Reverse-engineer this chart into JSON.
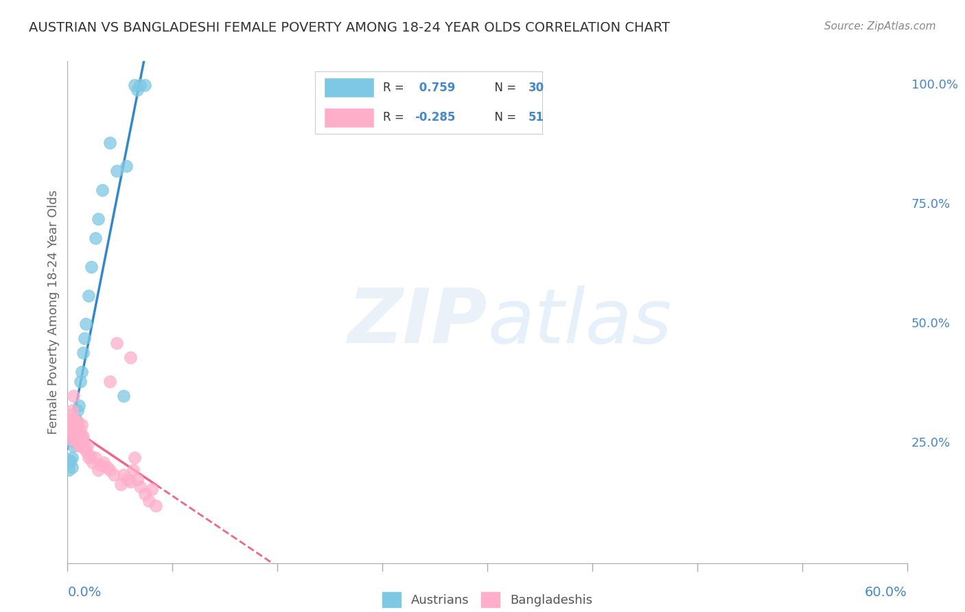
{
  "title": "AUSTRIAN VS BANGLADESHI FEMALE POVERTY AMONG 18-24 YEAR OLDS CORRELATION CHART",
  "source": "Source: ZipAtlas.com",
  "ylabel": "Female Poverty Among 18-24 Year Olds",
  "right_yticks": [
    "25.0%",
    "50.0%",
    "75.0%",
    "100.0%"
  ],
  "right_ytick_vals": [
    0.25,
    0.5,
    0.75,
    1.0
  ],
  "legend_austrians_r": "0.759",
  "legend_austrians_n": "30",
  "legend_bangladeshis_r": "-0.285",
  "legend_bangladeshis_n": "51",
  "blue_color": "#7ec8e3",
  "pink_color": "#ffaec9",
  "blue_line_color": "#3388cc",
  "pink_line_color": "#ee6688",
  "title_color": "#333333",
  "axis_label_color": "#666666",
  "right_axis_color": "#4488cc",
  "blue_label_color": "#4488cc",
  "background_color": "#ffffff",
  "grid_color": "#cccccc",
  "xlim": [
    0.0,
    0.6
  ],
  "ylim": [
    0.0,
    1.05
  ],
  "austrians_x": [
    0.001,
    0.002,
    0.002,
    0.003,
    0.003,
    0.004,
    0.004,
    0.005,
    0.006,
    0.007,
    0.007,
    0.008,
    0.009,
    0.01,
    0.011,
    0.012,
    0.013,
    0.015,
    0.017,
    0.02,
    0.022,
    0.025,
    0.03,
    0.035,
    0.04,
    0.042,
    0.048,
    0.05,
    0.052,
    0.055
  ],
  "austrians_y": [
    0.195,
    0.215,
    0.21,
    0.22,
    0.2,
    0.245,
    0.255,
    0.28,
    0.3,
    0.32,
    0.295,
    0.33,
    0.38,
    0.4,
    0.44,
    0.47,
    0.5,
    0.56,
    0.62,
    0.68,
    0.72,
    0.78,
    0.88,
    0.82,
    0.35,
    0.83,
    1.0,
    0.99,
    1.0,
    1.0
  ],
  "bangladeshis_x": [
    0.001,
    0.001,
    0.002,
    0.002,
    0.003,
    0.003,
    0.004,
    0.004,
    0.005,
    0.005,
    0.005,
    0.006,
    0.006,
    0.007,
    0.007,
    0.008,
    0.008,
    0.009,
    0.009,
    0.01,
    0.01,
    0.011,
    0.011,
    0.012,
    0.013,
    0.014,
    0.015,
    0.016,
    0.018,
    0.02,
    0.022,
    0.024,
    0.026,
    0.028,
    0.03,
    0.033,
    0.038,
    0.04,
    0.043,
    0.045,
    0.047,
    0.048,
    0.05,
    0.052,
    0.055,
    0.058,
    0.06,
    0.063,
    0.045,
    0.035,
    0.03
  ],
  "bangladeshis_y": [
    0.275,
    0.295,
    0.31,
    0.26,
    0.32,
    0.28,
    0.35,
    0.3,
    0.26,
    0.28,
    0.3,
    0.255,
    0.285,
    0.27,
    0.295,
    0.245,
    0.265,
    0.245,
    0.28,
    0.265,
    0.29,
    0.265,
    0.255,
    0.24,
    0.235,
    0.245,
    0.22,
    0.225,
    0.21,
    0.22,
    0.195,
    0.205,
    0.21,
    0.2,
    0.195,
    0.185,
    0.165,
    0.185,
    0.175,
    0.17,
    0.195,
    0.22,
    0.175,
    0.16,
    0.145,
    0.13,
    0.155,
    0.12,
    0.43,
    0.46,
    0.38
  ]
}
